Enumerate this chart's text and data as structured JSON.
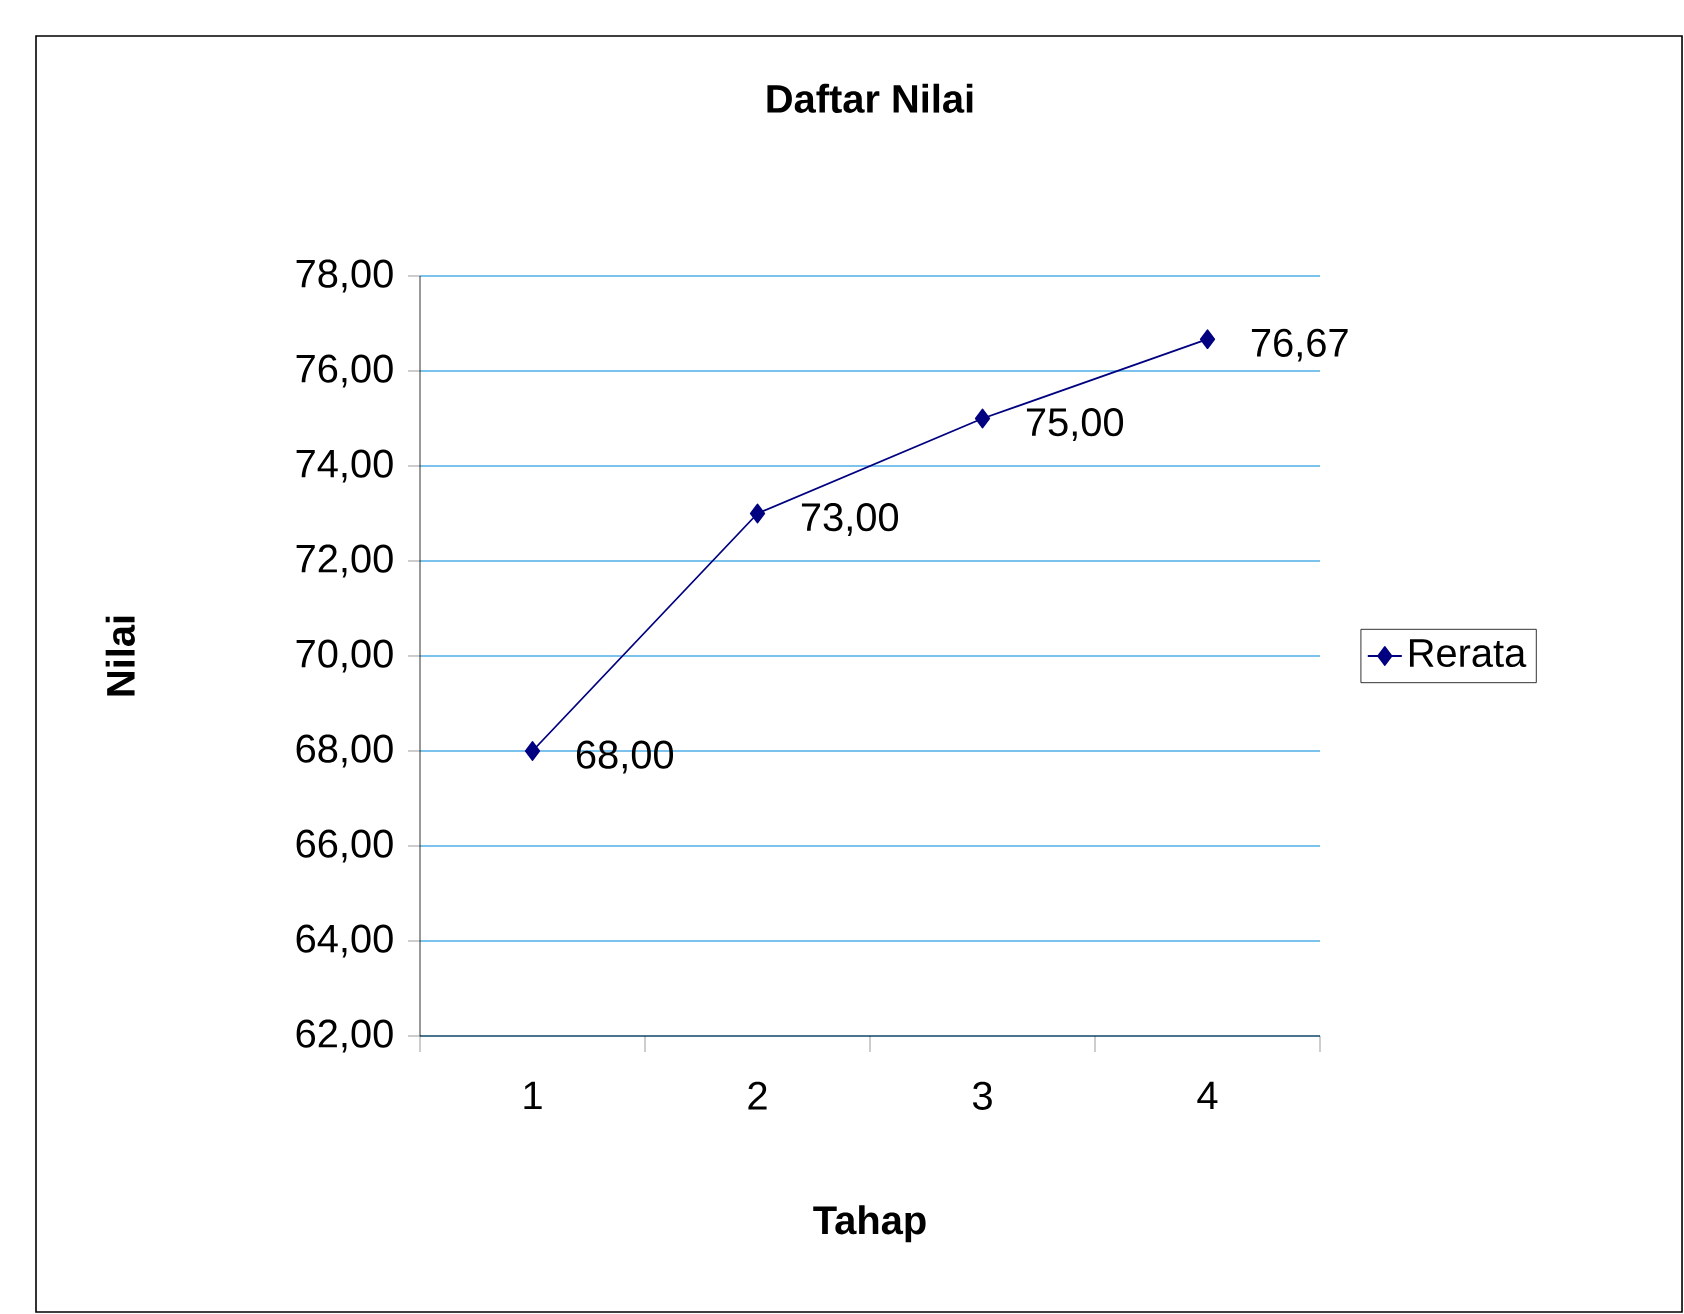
{
  "chart_data": {
    "type": "line",
    "title": "Daftar Nilai",
    "xlabel": "Tahap",
    "ylabel": "Nilai",
    "categories": [
      "1",
      "2",
      "3",
      "4"
    ],
    "series": [
      {
        "name": "Rerata",
        "color": "#000080",
        "values": [
          68,
          73,
          75,
          76.67
        ],
        "value_labels": [
          "68,00",
          "73,00",
          "75,00",
          "76,67"
        ]
      }
    ],
    "ylim": [
      62,
      78
    ],
    "yticks": [
      {
        "value": 62,
        "label": "62,00"
      },
      {
        "value": 64,
        "label": "64,00"
      },
      {
        "value": 66,
        "label": "66,00"
      },
      {
        "value": 68,
        "label": "68,00"
      },
      {
        "value": 70,
        "label": "70,00"
      },
      {
        "value": 72,
        "label": "72,00"
      },
      {
        "value": 74,
        "label": "74,00"
      },
      {
        "value": 76,
        "label": "76,00"
      },
      {
        "value": 78,
        "label": "78,00"
      }
    ],
    "grid": "y",
    "legend": "right",
    "marker": "diamond",
    "line_style": "solid"
  }
}
